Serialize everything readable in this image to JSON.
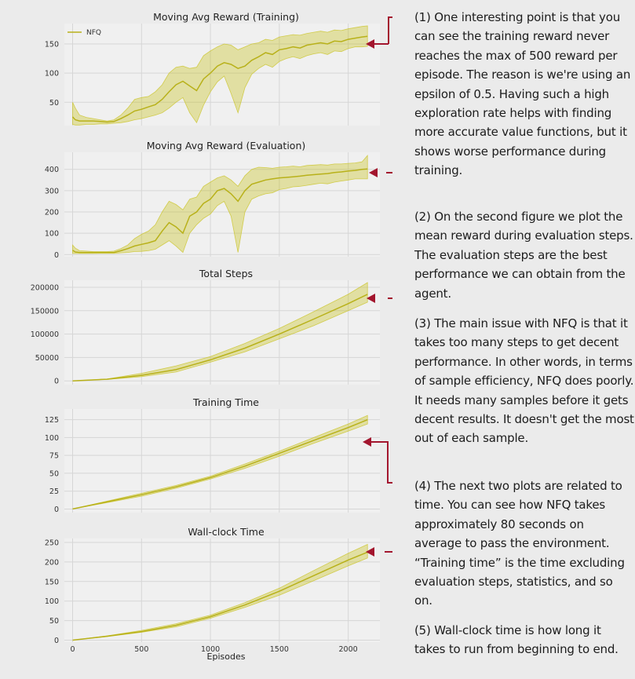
{
  "chart_data": [
    {
      "type": "line",
      "title": "Moving Avg Reward (Training)",
      "legend": {
        "entries": [
          "NFQ"
        ],
        "placement": "top-left"
      },
      "xlim": [
        -60,
        2230
      ],
      "ylim": [
        10,
        185
      ],
      "yticks": [
        50,
        100,
        150
      ],
      "grid": true,
      "series": [
        {
          "name": "NFQ",
          "x": [
            0,
            20,
            50,
            100,
            150,
            200,
            250,
            300,
            350,
            400,
            450,
            500,
            550,
            600,
            650,
            700,
            750,
            800,
            850,
            900,
            950,
            1000,
            1050,
            1100,
            1150,
            1200,
            1250,
            1300,
            1350,
            1400,
            1450,
            1500,
            1550,
            1600,
            1650,
            1700,
            1750,
            1800,
            1850,
            1900,
            1950,
            2000,
            2050,
            2100,
            2140
          ],
          "mean": [
            25,
            20,
            18,
            18,
            18,
            17,
            16,
            17,
            22,
            28,
            35,
            38,
            42,
            46,
            55,
            68,
            80,
            86,
            78,
            70,
            90,
            100,
            112,
            118,
            115,
            108,
            112,
            122,
            128,
            135,
            132,
            140,
            142,
            145,
            143,
            148,
            150,
            152,
            150,
            155,
            154,
            158,
            160,
            162,
            163
          ],
          "upper": [
            50,
            40,
            28,
            24,
            22,
            20,
            18,
            20,
            28,
            40,
            55,
            58,
            60,
            68,
            80,
            100,
            110,
            112,
            108,
            110,
            130,
            138,
            145,
            150,
            148,
            140,
            145,
            150,
            152,
            158,
            156,
            162,
            164,
            166,
            165,
            168,
            170,
            172,
            170,
            174,
            173,
            176,
            178,
            180,
            181
          ],
          "lower": [
            12,
            11,
            11,
            12,
            12,
            13,
            13,
            14,
            15,
            17,
            20,
            22,
            25,
            28,
            32,
            40,
            50,
            58,
            32,
            15,
            45,
            68,
            85,
            95,
            65,
            32,
            75,
            98,
            108,
            115,
            110,
            120,
            125,
            128,
            125,
            130,
            133,
            135,
            132,
            138,
            137,
            142,
            145,
            145,
            146
          ]
        }
      ]
    },
    {
      "type": "line",
      "title": "Moving Avg Reward (Evaluation)",
      "xlim": [
        -60,
        2230
      ],
      "ylim": [
        -10,
        480
      ],
      "yticks": [
        0,
        100,
        200,
        300,
        400
      ],
      "grid": true,
      "series": [
        {
          "name": "NFQ",
          "x": [
            0,
            20,
            50,
            100,
            150,
            200,
            250,
            300,
            350,
            400,
            450,
            500,
            550,
            600,
            650,
            700,
            750,
            800,
            850,
            900,
            950,
            1000,
            1050,
            1100,
            1150,
            1200,
            1250,
            1300,
            1350,
            1400,
            1450,
            1500,
            1550,
            1600,
            1650,
            1700,
            1750,
            1800,
            1850,
            1900,
            1950,
            2000,
            2050,
            2100,
            2140
          ],
          "mean": [
            20,
            12,
            10,
            10,
            10,
            10,
            10,
            10,
            18,
            28,
            40,
            48,
            55,
            65,
            110,
            150,
            130,
            100,
            180,
            200,
            240,
            260,
            300,
            310,
            285,
            250,
            300,
            330,
            340,
            350,
            355,
            360,
            362,
            365,
            368,
            372,
            375,
            378,
            380,
            385,
            388,
            392,
            395,
            400,
            402
          ],
          "upper": [
            45,
            30,
            18,
            16,
            14,
            14,
            14,
            16,
            28,
            45,
            75,
            95,
            110,
            140,
            200,
            250,
            235,
            210,
            260,
            270,
            320,
            340,
            360,
            370,
            350,
            320,
            370,
            400,
            410,
            408,
            405,
            410,
            412,
            415,
            412,
            418,
            420,
            422,
            420,
            425,
            425,
            428,
            430,
            435,
            465
          ],
          "lower": [
            5,
            5,
            5,
            5,
            5,
            6,
            6,
            6,
            8,
            10,
            14,
            15,
            18,
            25,
            45,
            65,
            40,
            10,
            100,
            140,
            170,
            190,
            230,
            250,
            180,
            10,
            200,
            260,
            275,
            285,
            290,
            305,
            310,
            318,
            320,
            325,
            330,
            335,
            332,
            340,
            345,
            350,
            355,
            355,
            355
          ]
        }
      ]
    },
    {
      "type": "line",
      "title": "Total Steps",
      "xlim": [
        -60,
        2230
      ],
      "ylim": [
        -8000,
        215000
      ],
      "yticks": [
        0,
        50000,
        100000,
        150000,
        200000
      ],
      "grid": true,
      "series": [
        {
          "name": "NFQ",
          "x": [
            0,
            250,
            500,
            750,
            1000,
            1250,
            1500,
            1750,
            2000,
            2140
          ],
          "mean": [
            0,
            3500,
            12000,
            24000,
            45000,
            70000,
            100000,
            132000,
            165000,
            185000
          ],
          "upper": [
            0,
            4000,
            16000,
            32000,
            52000,
            80000,
            112000,
            148000,
            185000,
            210000
          ],
          "lower": [
            0,
            3000,
            9000,
            19000,
            40000,
            62000,
            90000,
            118000,
            150000,
            168000
          ]
        }
      ]
    },
    {
      "type": "line",
      "title": "Training Time",
      "xlim": [
        -60,
        2230
      ],
      "ylim": [
        -5,
        140
      ],
      "yticks": [
        0,
        25,
        50,
        75,
        100,
        125
      ],
      "grid": true,
      "series": [
        {
          "name": "NFQ",
          "x": [
            0,
            250,
            500,
            750,
            1000,
            1250,
            1500,
            1750,
            2000,
            2140
          ],
          "mean": [
            0,
            10,
            20,
            31,
            44,
            60,
            78,
            96,
            114,
            125
          ],
          "upper": [
            0,
            11,
            22,
            33,
            46,
            63,
            81,
            100,
            119,
            131
          ],
          "lower": [
            0,
            9,
            18,
            29,
            42,
            57,
            74,
            92,
            109,
            119
          ]
        }
      ]
    },
    {
      "type": "line",
      "title": "Wall-clock Time",
      "xlabel": "Episodes",
      "xlim": [
        -60,
        2230
      ],
      "xticks": [
        0,
        500,
        1000,
        1500,
        2000
      ],
      "ylim": [
        -5,
        260
      ],
      "yticks": [
        0,
        50,
        100,
        150,
        200,
        250
      ],
      "grid": true,
      "series": [
        {
          "name": "NFQ",
          "x": [
            0,
            250,
            500,
            750,
            1000,
            1250,
            1500,
            1750,
            2000,
            2140
          ],
          "mean": [
            0,
            10,
            22,
            38,
            60,
            90,
            125,
            165,
            205,
            225
          ],
          "upper": [
            0,
            11,
            25,
            42,
            64,
            96,
            133,
            178,
            222,
            245
          ],
          "lower": [
            0,
            9,
            20,
            34,
            56,
            84,
            115,
            152,
            190,
            210
          ]
        }
      ]
    }
  ],
  "colors": {
    "series": "#c9c322",
    "mean": "#b8b11a",
    "arrow": "#a3162e"
  },
  "notes": [
    "(1) One interesting point is that you can see the training reward never reaches the max of 500 reward per episode. The reason is we're using an epsilon of 0.5. Having such a high exploration rate helps with finding more accurate value functions, but it shows worse performance during training.",
    "(2) On the second figure we plot the mean reward during evaluation steps. The evaluation steps are the best performance we can obtain from the agent.",
    "(3) The main issue with NFQ is that it takes too many steps to get decent performance. In other words, in terms of sample efficiency, NFQ does poorly. It needs many samples before it gets decent results. It doesn't get the most out of each sample.",
    "(4) The next two plots are related to time. You can see how NFQ takes approximately 80 seconds on average to pass the environment. “Training time” is the time excluding evaluation steps, statistics, and so on.",
    "(5) Wall-clock time is how long it takes to run from beginning to end."
  ]
}
